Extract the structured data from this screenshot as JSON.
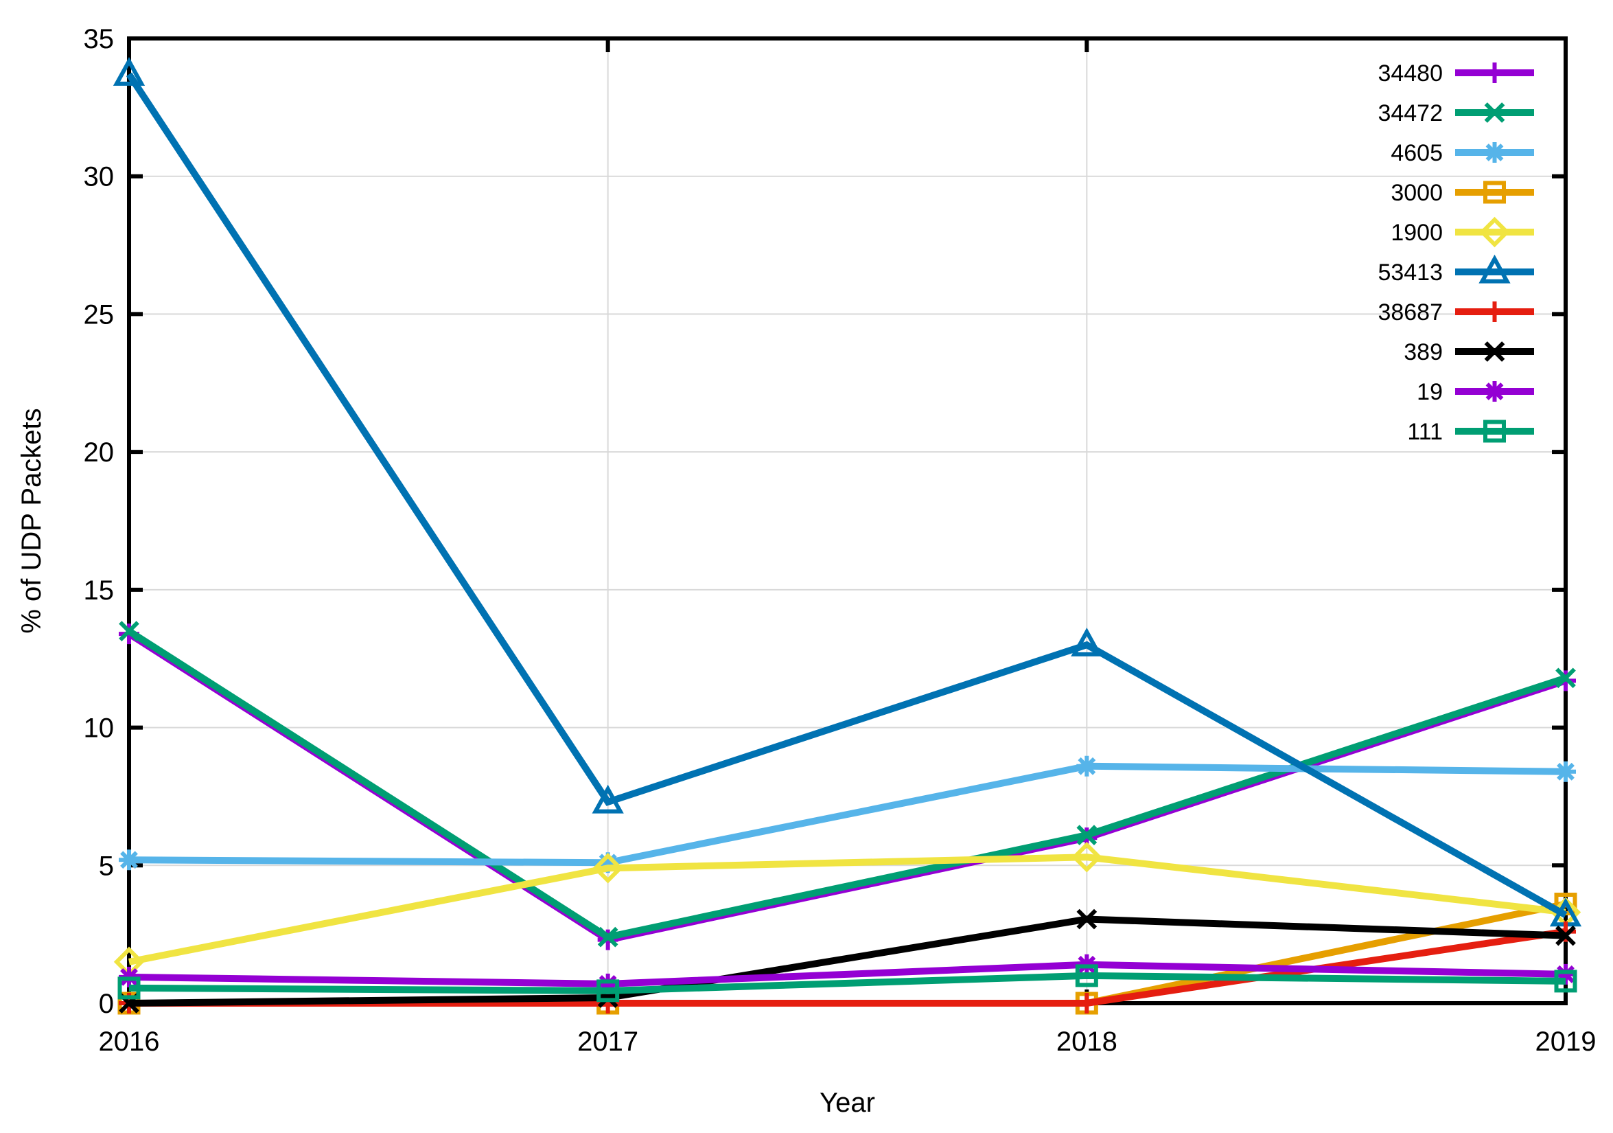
{
  "chart_data": {
    "type": "line",
    "title": "",
    "xlabel": "Year",
    "ylabel": "% of UDP Packets",
    "x": [
      2016,
      2017,
      2018,
      2019
    ],
    "xlim": [
      2016,
      2019
    ],
    "ylim": [
      0,
      35
    ],
    "yticks": [
      0,
      5,
      10,
      15,
      20,
      25,
      30,
      35
    ],
    "grid": true,
    "legend_position": "top-right-inside",
    "series": [
      {
        "name": "34480",
        "color": "#9400d3",
        "marker": "plus",
        "values": [
          13.4,
          2.3,
          6.0,
          11.7
        ]
      },
      {
        "name": "34472",
        "color": "#009e73",
        "marker": "cross",
        "values": [
          13.5,
          2.4,
          6.1,
          11.8
        ]
      },
      {
        "name": "4605",
        "color": "#56b4e9",
        "marker": "asterisk",
        "values": [
          5.2,
          5.1,
          8.6,
          8.4
        ]
      },
      {
        "name": "3000",
        "color": "#e69f00",
        "marker": "square",
        "values": [
          0.0,
          0.0,
          0.0,
          3.6
        ]
      },
      {
        "name": "1900",
        "color": "#f0e442",
        "marker": "diamond",
        "values": [
          1.5,
          4.9,
          5.3,
          3.3
        ]
      },
      {
        "name": "53413",
        "color": "#0072b2",
        "marker": "triangle",
        "values": [
          33.7,
          7.3,
          13.0,
          3.2
        ]
      },
      {
        "name": "38687",
        "color": "#e51e10",
        "marker": "plus",
        "values": [
          0.0,
          0.0,
          0.0,
          2.6
        ]
      },
      {
        "name": "389",
        "color": "#000000",
        "marker": "cross",
        "values": [
          0.0,
          0.2,
          3.05,
          2.45
        ]
      },
      {
        "name": "19",
        "color": "#9400d3",
        "marker": "asterisk",
        "values": [
          0.95,
          0.7,
          1.4,
          1.05
        ]
      },
      {
        "name": "111",
        "color": "#009e73",
        "marker": "square",
        "values": [
          0.55,
          0.45,
          1.0,
          0.8
        ]
      }
    ],
    "colors": {
      "grid": "#d9d9d9",
      "axis": "#000000",
      "background": "#ffffff"
    }
  }
}
